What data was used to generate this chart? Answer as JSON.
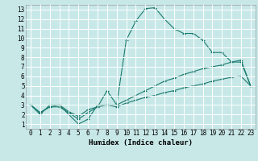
{
  "xlabel": "Humidex (Indice chaleur)",
  "bg_color": "#c8e8e8",
  "grid_color": "#ffffff",
  "line_color": "#1a7a6e",
  "xlim": [
    -0.5,
    23.5
  ],
  "ylim": [
    0.5,
    13.5
  ],
  "xticks": [
    0,
    1,
    2,
    3,
    4,
    5,
    6,
    7,
    8,
    9,
    10,
    11,
    12,
    13,
    14,
    15,
    16,
    17,
    18,
    19,
    20,
    21,
    22,
    23
  ],
  "yticks": [
    1,
    2,
    3,
    4,
    5,
    6,
    7,
    8,
    9,
    10,
    11,
    12,
    13
  ],
  "line1_x": [
    0,
    1,
    2,
    3,
    4,
    5,
    6,
    7,
    8,
    9,
    10,
    11,
    12,
    13,
    14,
    15,
    16,
    17,
    18,
    19,
    20,
    21,
    22,
    23
  ],
  "line1_y": [
    3.0,
    2.0,
    3.0,
    3.0,
    2.0,
    1.0,
    1.5,
    3.0,
    3.0,
    3.0,
    9.8,
    11.8,
    13.1,
    13.2,
    12.0,
    11.0,
    10.5,
    10.5,
    9.8,
    8.5,
    8.5,
    7.5,
    7.5,
    5.0
  ],
  "line2_x": [
    0,
    1,
    2,
    3,
    4,
    5,
    6,
    7,
    8,
    9,
    10,
    11,
    12,
    13,
    14,
    15,
    16,
    17,
    18,
    19,
    20,
    21,
    22,
    23
  ],
  "line2_y": [
    3.0,
    2.2,
    2.8,
    3.0,
    2.3,
    1.8,
    2.5,
    2.8,
    4.5,
    3.0,
    3.5,
    4.0,
    4.5,
    5.0,
    5.5,
    5.8,
    6.2,
    6.5,
    6.8,
    7.0,
    7.2,
    7.5,
    7.7,
    5.0
  ],
  "line3_x": [
    0,
    1,
    2,
    3,
    4,
    5,
    6,
    7,
    8,
    9,
    10,
    11,
    12,
    13,
    14,
    15,
    16,
    17,
    18,
    19,
    20,
    21,
    22,
    23
  ],
  "line3_y": [
    3.0,
    2.2,
    2.8,
    2.8,
    2.2,
    1.5,
    2.2,
    2.8,
    3.0,
    2.8,
    3.2,
    3.5,
    3.8,
    4.0,
    4.3,
    4.5,
    4.8,
    5.0,
    5.2,
    5.5,
    5.7,
    5.9,
    6.0,
    5.0
  ],
  "tick_fontsize": 5.5,
  "xlabel_fontsize": 6.5
}
